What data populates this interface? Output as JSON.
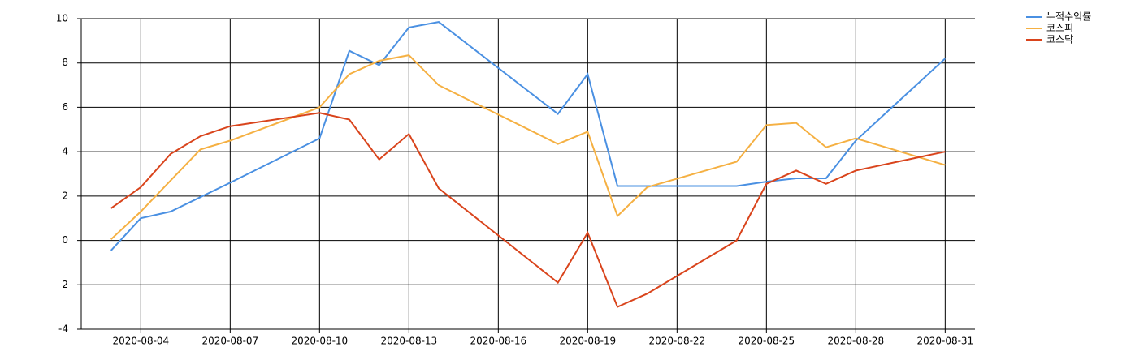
{
  "chart_data": {
    "type": "line",
    "x": [
      "2020-08-03",
      "2020-08-04",
      "2020-08-05",
      "2020-08-06",
      "2020-08-07",
      "2020-08-10",
      "2020-08-11",
      "2020-08-12",
      "2020-08-13",
      "2020-08-14",
      "2020-08-18",
      "2020-08-19",
      "2020-08-20",
      "2020-08-21",
      "2020-08-24",
      "2020-08-25",
      "2020-08-26",
      "2020-08-27",
      "2020-08-28",
      "2020-08-31"
    ],
    "series": [
      {
        "name": "누적수익률",
        "color": "#4a90e2",
        "values": [
          -0.45,
          1.0,
          1.3,
          1.95,
          2.6,
          4.6,
          8.55,
          7.9,
          9.6,
          9.85,
          5.7,
          7.5,
          2.45,
          2.45,
          2.45,
          2.65,
          2.8,
          2.8,
          4.5,
          8.2
        ]
      },
      {
        "name": "코스피",
        "color": "#f5b042",
        "values": [
          0.05,
          1.3,
          2.7,
          4.1,
          4.5,
          6.0,
          7.5,
          8.1,
          8.35,
          7.0,
          4.35,
          4.9,
          1.1,
          2.4,
          3.55,
          5.2,
          5.3,
          4.2,
          4.6,
          3.4
        ]
      },
      {
        "name": "코스닥",
        "color": "#d9441c",
        "values": [
          1.45,
          2.4,
          3.9,
          4.7,
          5.15,
          5.75,
          5.45,
          3.65,
          4.8,
          2.35,
          -1.9,
          0.35,
          -3.0,
          -2.4,
          0.0,
          2.55,
          3.15,
          2.55,
          3.15,
          4.0
        ]
      }
    ],
    "xlim": [
      "2020-08-02",
      "2020-09-01"
    ],
    "xticks": [
      "2020-08-04",
      "2020-08-07",
      "2020-08-10",
      "2020-08-13",
      "2020-08-16",
      "2020-08-19",
      "2020-08-22",
      "2020-08-25",
      "2020-08-28",
      "2020-08-31"
    ],
    "ylim": [
      -4,
      10
    ],
    "yticks": [
      -4,
      -2,
      0,
      2,
      4,
      6,
      8,
      10
    ],
    "grid": true,
    "legend": "top-right"
  }
}
